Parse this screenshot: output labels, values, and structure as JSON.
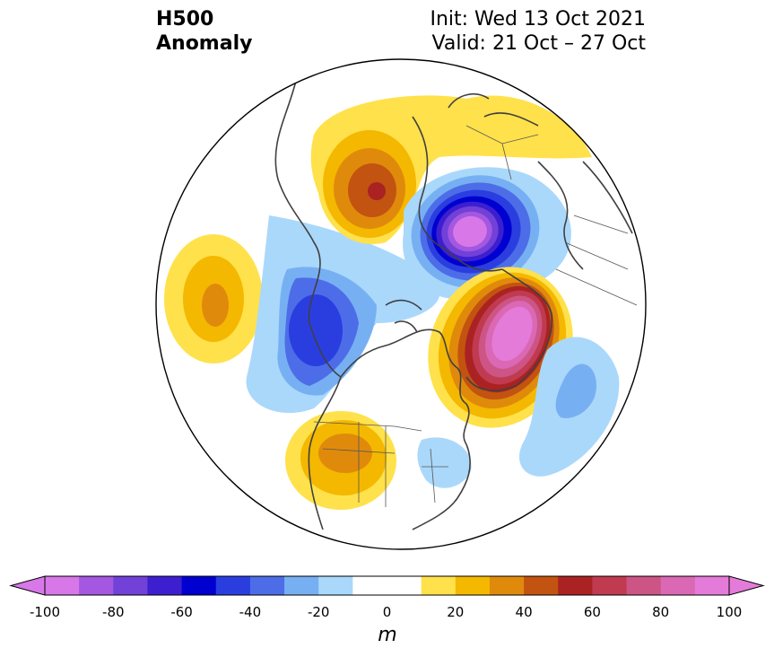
{
  "header": {
    "variable": "H500",
    "field": "Anomaly",
    "init": "Init: Wed 13 Oct 2021",
    "valid": "Valid: 21 Oct – 27 Oct"
  },
  "colorbar": {
    "units": "m",
    "ticks": [
      "-100",
      "-80",
      "-60",
      "-40",
      "-20",
      "0",
      "20",
      "40",
      "60",
      "80",
      "100"
    ],
    "levels": [
      -100,
      -90,
      -80,
      -70,
      -60,
      -50,
      -40,
      -30,
      -20,
      -10,
      10,
      20,
      30,
      40,
      50,
      60,
      70,
      80,
      90,
      100
    ],
    "colors": [
      "#d878e8",
      "#a457e0",
      "#7141d8",
      "#3d1fd0",
      "#0000d0",
      "#2a3ee0",
      "#4d6de8",
      "#77b0f2",
      "#aad8fb",
      "#ffffff",
      "#ffe14b",
      "#f4b800",
      "#e08a0c",
      "#c35310",
      "#aa2222",
      "#c03a50",
      "#cc5585",
      "#da68b5",
      "#e57bd8"
    ],
    "extend_low_color": "#d878e8",
    "extend_high_color": "#e57bd8"
  },
  "map": {
    "projection": "north-polar-stereographic",
    "coastline_color": "#404040",
    "border_color": "#555555"
  }
}
